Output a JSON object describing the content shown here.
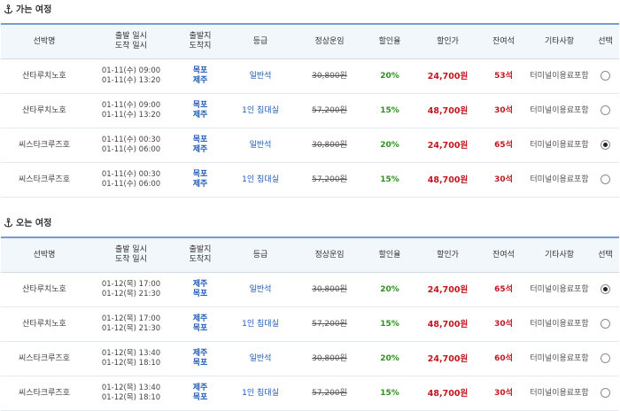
{
  "outbound": {
    "title": "가는 여정",
    "headers": {
      "ship": "선박명",
      "datetime_dep": "출발 일시",
      "datetime_arr": "도착 일시",
      "port_dep": "출발지",
      "port_arr": "도착지",
      "grade": "등급",
      "normal_fare": "정상운임",
      "discount_rate": "할인율",
      "discount_price": "할인가",
      "seats": "잔여석",
      "etc": "기타사항",
      "select": "선택"
    },
    "rows": [
      {
        "ship": "산타루치노호",
        "dep_time": "01-11(수) 09:00",
        "arr_time": "01-11(수) 13:20",
        "dep_port": "목포",
        "arr_port": "제주",
        "grade": "일반석",
        "normal": "30,800원",
        "rate": "20%",
        "price": "24,700원",
        "seats": "53석",
        "etc": "터미널이용료포함",
        "selected": false
      },
      {
        "ship": "산타루치노호",
        "dep_time": "01-11(수) 09:00",
        "arr_time": "01-11(수) 13:20",
        "dep_port": "목포",
        "arr_port": "제주",
        "grade": "1인 침대실",
        "normal": "57,200원",
        "rate": "15%",
        "price": "48,700원",
        "seats": "30석",
        "etc": "터미널이용료포함",
        "selected": false
      },
      {
        "ship": "씨스타크루즈호",
        "dep_time": "01-11(수) 00:30",
        "arr_time": "01-11(수) 06:00",
        "dep_port": "목포",
        "arr_port": "제주",
        "grade": "일반석",
        "normal": "30,800원",
        "rate": "20%",
        "price": "24,700원",
        "seats": "65석",
        "etc": "터미널이용료포함",
        "selected": true
      },
      {
        "ship": "씨스타크루즈호",
        "dep_time": "01-11(수) 00:30",
        "arr_time": "01-11(수) 06:00",
        "dep_port": "목포",
        "arr_port": "제주",
        "grade": "1인 침대실",
        "normal": "57,200원",
        "rate": "15%",
        "price": "48,700원",
        "seats": "30석",
        "etc": "터미널이용료포함",
        "selected": false
      }
    ]
  },
  "inbound": {
    "title": "오는 여정",
    "headers": {
      "ship": "선박명",
      "datetime_dep": "출발 일시",
      "datetime_arr": "도착 일시",
      "port_dep": "출발지",
      "port_arr": "도착지",
      "grade": "등급",
      "normal_fare": "정상운임",
      "discount_rate": "할인율",
      "discount_price": "할인가",
      "seats": "잔여석",
      "etc": "기타사항",
      "select": "선택"
    },
    "rows": [
      {
        "ship": "산타루치노호",
        "dep_time": "01-12(목) 17:00",
        "arr_time": "01-12(목) 21:30",
        "dep_port": "제주",
        "arr_port": "목포",
        "grade": "일반석",
        "normal": "30,800원",
        "rate": "20%",
        "price": "24,700원",
        "seats": "65석",
        "etc": "터미널이용료포함",
        "selected": true
      },
      {
        "ship": "산타루치노호",
        "dep_time": "01-12(목) 17:00",
        "arr_time": "01-12(목) 21:30",
        "dep_port": "제주",
        "arr_port": "목포",
        "grade": "1인 침대실",
        "normal": "57,200원",
        "rate": "15%",
        "price": "48,700원",
        "seats": "30석",
        "etc": "터미널이용료포함",
        "selected": false
      },
      {
        "ship": "씨스타크루즈호",
        "dep_time": "01-12(목) 13:40",
        "arr_time": "01-12(목) 18:10",
        "dep_port": "제주",
        "arr_port": "목포",
        "grade": "일반석",
        "normal": "30,800원",
        "rate": "20%",
        "price": "24,700원",
        "seats": "60석",
        "etc": "터미널이용료포함",
        "selected": false
      },
      {
        "ship": "씨스타크루즈호",
        "dep_time": "01-12(목) 13:40",
        "arr_time": "01-12(목) 18:10",
        "dep_port": "제주",
        "arr_port": "목포",
        "grade": "1인 침대실",
        "normal": "57,200원",
        "rate": "15%",
        "price": "48,700원",
        "seats": "30석",
        "etc": "터미널이용료포함",
        "selected": false
      }
    ]
  },
  "icons": {
    "section": "anchor-icon",
    "select": "radio-button"
  },
  "colors": {
    "accent_border": "#6f9fd4",
    "port": "#1b59b4",
    "discount": "#2f8f1e",
    "price": "#c2161e",
    "header_bg": "#f2f7fc"
  }
}
